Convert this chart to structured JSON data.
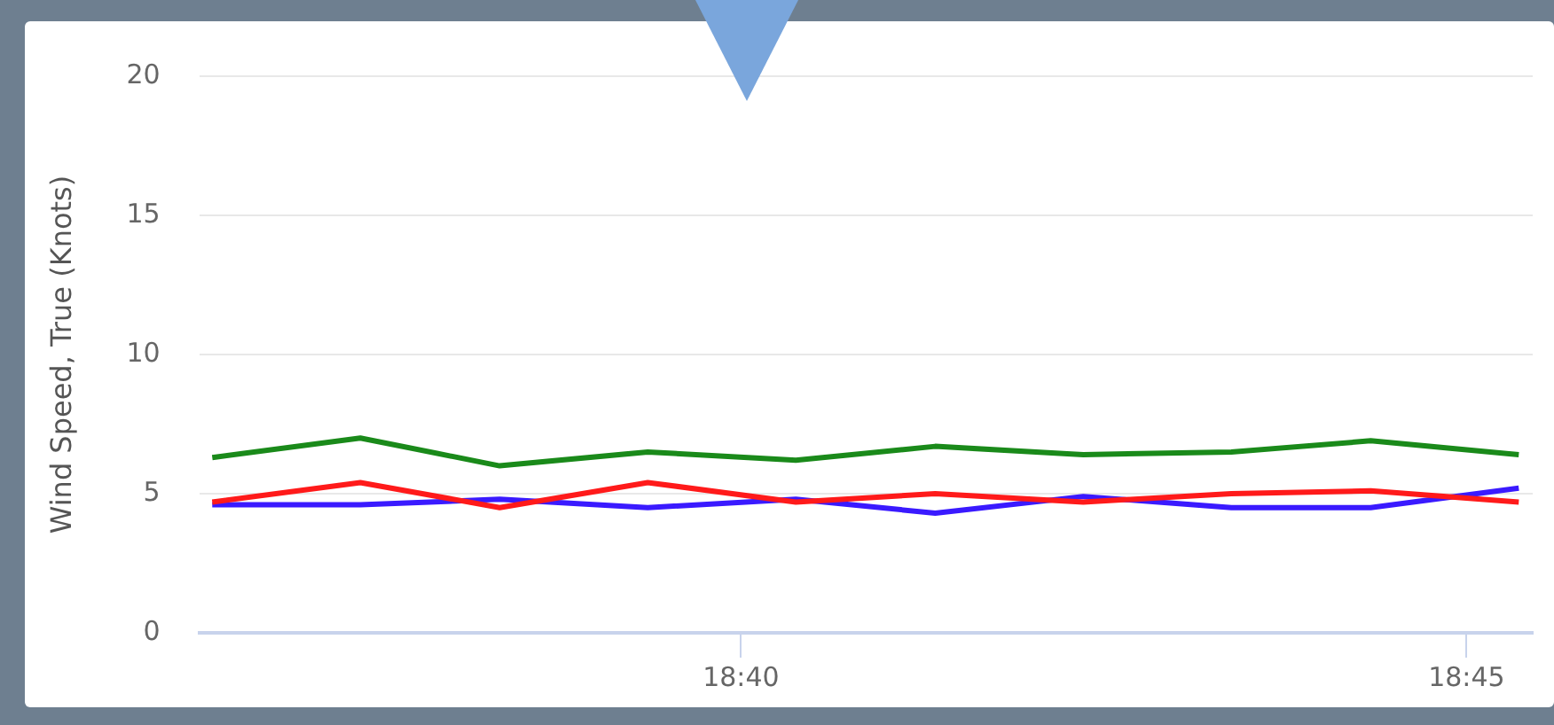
{
  "chart_data": {
    "type": "line",
    "ylabel": "Wind Speed, True (Knots)",
    "x": [
      18.606,
      18.623,
      18.639,
      18.656,
      18.673,
      18.689,
      18.706,
      18.723,
      18.739,
      18.756
    ],
    "xlim": [
      18.6045,
      18.7576
    ],
    "xticks": [
      {
        "value": 18.6667,
        "label": "18:40"
      },
      {
        "value": 18.75,
        "label": "18:45"
      }
    ],
    "ylim": [
      0,
      20
    ],
    "yticks": [
      0,
      5,
      10,
      15,
      20
    ],
    "grid": "y",
    "legend": false,
    "marker": "none",
    "line_style": "solid",
    "series": [
      {
        "color": "#1a8a1a",
        "values": [
          6.3,
          7.0,
          6.0,
          6.5,
          6.2,
          6.7,
          6.4,
          6.5,
          6.9,
          6.4
        ]
      },
      {
        "color": "#ff1a1a",
        "values": [
          4.7,
          5.4,
          4.5,
          5.4,
          4.7,
          5.0,
          4.7,
          5.0,
          5.1,
          4.7
        ]
      },
      {
        "color": "#3a1aff",
        "values": [
          4.6,
          4.6,
          4.8,
          4.5,
          4.8,
          4.3,
          4.9,
          4.5,
          4.5,
          5.2
        ]
      }
    ]
  }
}
